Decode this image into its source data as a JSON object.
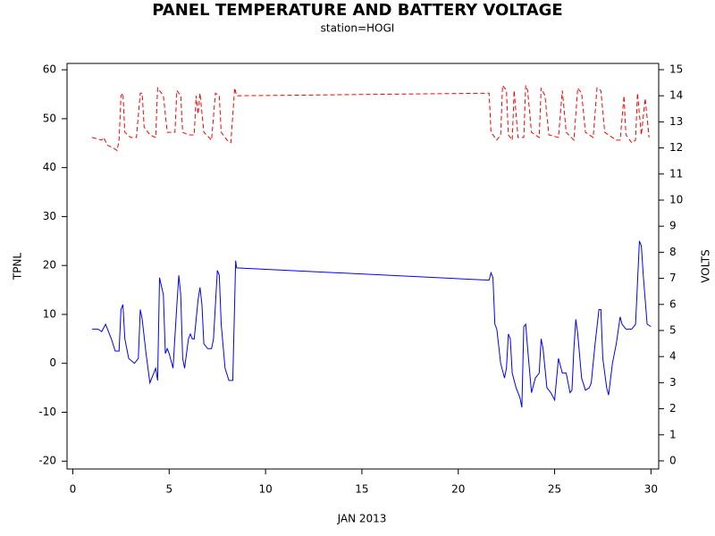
{
  "chart_data": {
    "type": "line",
    "title": "PANEL TEMPERATURE AND BATTERY VOLTAGE",
    "subtitle": "station=HOGI",
    "x_label": "JAN 2013",
    "y_label": "TPNL",
    "y2_label": "VOLTS",
    "xlim": [
      -0.3,
      30.4
    ],
    "xticks": [
      0,
      5,
      10,
      15,
      20,
      25,
      30
    ],
    "ylim": [
      -21.6,
      61.3
    ],
    "yticks": [
      -20,
      -10,
      0,
      10,
      20,
      30,
      40,
      50,
      60
    ],
    "y2lim": [
      -0.31,
      15.24
    ],
    "y2ticks": [
      0,
      1,
      2,
      3,
      4,
      5,
      6,
      7,
      8,
      9,
      10,
      11,
      12,
      13,
      14,
      15
    ],
    "series": [
      {
        "color": "#0000ff",
        "linestyle": "solid",
        "axis": "y",
        "x": [
          1.0,
          1.3,
          1.5,
          1.7,
          2.0,
          2.2,
          2.4,
          2.5,
          2.6,
          2.7,
          2.9,
          3.2,
          3.4,
          3.5,
          3.6,
          3.8,
          4.0,
          4.2,
          4.3,
          4.4,
          4.5,
          4.7,
          4.8,
          4.9,
          5.0,
          5.2,
          5.4,
          5.5,
          5.6,
          5.7,
          5.8,
          6.0,
          6.1,
          6.2,
          6.3,
          6.5,
          6.6,
          6.7,
          6.8,
          7.0,
          7.2,
          7.3,
          7.5,
          7.6,
          7.7,
          7.9,
          8.1,
          8.3,
          8.45,
          8.5,
          21.6,
          21.7,
          21.8,
          21.9,
          22.0,
          22.2,
          22.4,
          22.5,
          22.6,
          22.7,
          22.8,
          23.0,
          23.2,
          23.3,
          23.4,
          23.5,
          23.6,
          23.8,
          24.0,
          24.2,
          24.3,
          24.4,
          24.6,
          24.8,
          25.0,
          25.2,
          25.4,
          25.6,
          25.8,
          25.9,
          26.0,
          26.1,
          26.2,
          26.4,
          26.6,
          26.8,
          26.9,
          27.1,
          27.3,
          27.4,
          27.5,
          27.7,
          27.8,
          28.0,
          28.2,
          28.4,
          28.5,
          28.7,
          29.0,
          29.2,
          29.4,
          29.5,
          29.6,
          29.8,
          30.0
        ],
        "values": [
          7,
          7,
          6.5,
          8,
          5,
          2.5,
          2.5,
          11,
          12,
          5,
          1,
          0,
          1,
          11,
          9,
          2,
          -4,
          -2,
          -1,
          -3.5,
          17.5,
          14,
          2,
          3,
          2,
          -1,
          12,
          18,
          14,
          1,
          -1,
          5,
          6,
          5,
          5,
          13,
          15.5,
          12,
          4,
          3,
          3,
          5,
          19,
          18,
          8,
          -1,
          -3.5,
          -3.5,
          21,
          19.5,
          17,
          18.5,
          17.5,
          8,
          7,
          0,
          -3,
          -1,
          6,
          5,
          -2,
          -5,
          -7,
          -9,
          7.5,
          8,
          3,
          -6,
          -3,
          -2,
          5,
          3,
          -5,
          -6,
          -7.5,
          1,
          -2,
          -2,
          -6,
          -5.5,
          3,
          9,
          6,
          -3,
          -5.5,
          -5,
          -4,
          4,
          11,
          11,
          1,
          -5,
          -6.5,
          0,
          4,
          9.5,
          8,
          7,
          7,
          8,
          25,
          24,
          18,
          8,
          7.5
        ]
      },
      {
        "color": "#ff0000",
        "linestyle": "dashed",
        "axis": "y2",
        "x": [
          1.0,
          1.5,
          1.6,
          1.8,
          2.1,
          2.3,
          2.4,
          2.5,
          2.6,
          2.7,
          3.0,
          3.3,
          3.5,
          3.6,
          3.7,
          4.0,
          4.3,
          4.4,
          4.5,
          4.7,
          4.9,
          5.3,
          5.4,
          5.6,
          5.7,
          6.0,
          6.3,
          6.4,
          6.5,
          6.6,
          6.8,
          7.2,
          7.4,
          7.6,
          7.7,
          8.0,
          8.2,
          8.4,
          8.5,
          21.6,
          21.7,
          22.0,
          22.2,
          22.3,
          22.5,
          22.6,
          22.8,
          22.9,
          23.1,
          23.4,
          23.5,
          23.6,
          23.8,
          24.2,
          24.3,
          24.5,
          24.7,
          25.2,
          25.4,
          25.6,
          26.0,
          26.2,
          26.4,
          26.6,
          27.0,
          27.2,
          27.4,
          27.6,
          28.2,
          28.4,
          28.6,
          28.7,
          29.0,
          29.2,
          29.3,
          29.5,
          29.7,
          29.9
        ],
        "values": [
          12.4,
          12.3,
          12.4,
          12.1,
          12.0,
          11.9,
          12.3,
          14.0,
          14.1,
          12.6,
          12.4,
          12.4,
          14.1,
          14.1,
          12.8,
          12.5,
          12.4,
          14.3,
          14.2,
          14.0,
          12.6,
          12.6,
          14.2,
          14.0,
          12.6,
          12.5,
          12.5,
          14.0,
          13.3,
          14.1,
          12.6,
          12.3,
          14.1,
          14.0,
          12.6,
          12.3,
          12.2,
          14.3,
          14.0,
          14.1,
          12.6,
          12.3,
          12.5,
          14.4,
          14.2,
          12.5,
          12.3,
          14.2,
          12.4,
          12.4,
          14.4,
          14.2,
          12.6,
          12.4,
          14.3,
          14.0,
          12.5,
          12.4,
          14.2,
          12.6,
          12.3,
          14.3,
          14.1,
          12.6,
          12.4,
          14.3,
          14.2,
          12.6,
          12.3,
          12.3,
          14.0,
          12.5,
          12.2,
          12.3,
          14.1,
          12.5,
          13.9,
          12.4
        ]
      }
    ]
  }
}
